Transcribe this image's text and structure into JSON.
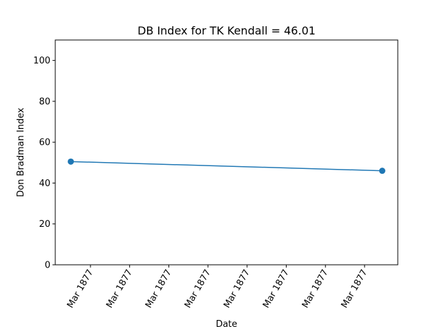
{
  "chart_data": {
    "type": "line",
    "title": "DB Index for TK Kendall = 46.01",
    "xlabel": "Date",
    "ylabel": "Don Bradman Index",
    "ylim": [
      0,
      110
    ],
    "y_ticks": [
      0,
      20,
      40,
      60,
      80,
      100
    ],
    "x_tick_labels": [
      "Mar 1877",
      "Mar 1877",
      "Mar 1877",
      "Mar 1877",
      "Mar 1877",
      "Mar 1877",
      "Mar 1877",
      "Mar 1877"
    ],
    "x": [
      "1877-03-15",
      "1877-03-19"
    ],
    "series": [
      {
        "values": [
          50.5,
          46.01
        ],
        "color": "#1f77b4",
        "marker": "circle"
      }
    ],
    "grid": false,
    "legend": "none"
  }
}
